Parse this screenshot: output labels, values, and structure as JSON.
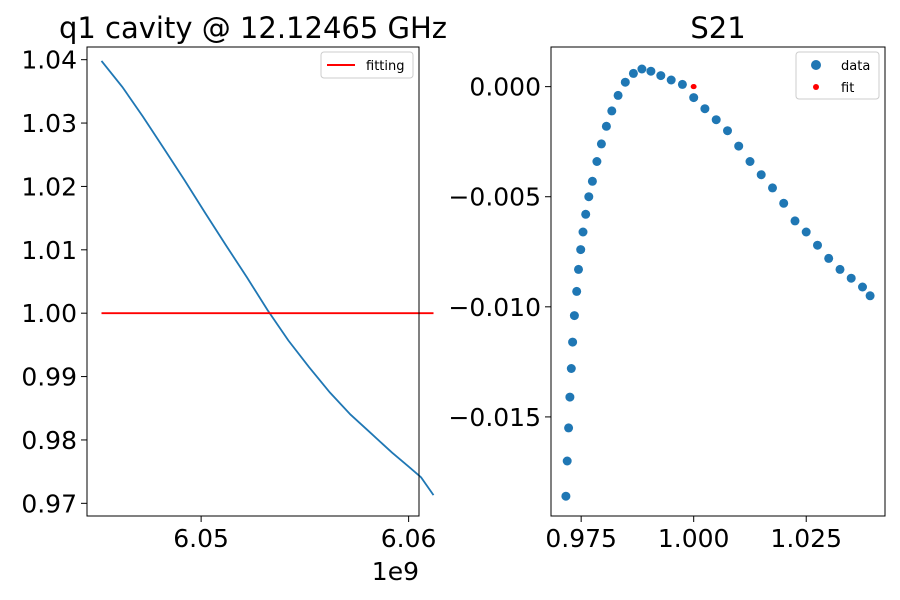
{
  "chart_data": [
    {
      "type": "line",
      "title": "q1 cavity @ 12.12465 GHz",
      "xlabel": "",
      "ylabel": "",
      "x_offset_text": "1e9",
      "xlim": [
        6.0445,
        6.0605
      ],
      "ylim": [
        0.968,
        1.042
      ],
      "xticks": [
        6.05,
        6.06
      ],
      "xtick_labels": [
        "6.05",
        "6.06"
      ],
      "yticks": [
        0.97,
        0.98,
        0.99,
        1.0,
        1.01,
        1.02,
        1.03,
        1.04
      ],
      "ytick_labels": [
        "0.97",
        "0.98",
        "0.99",
        "1.00",
        "1.01",
        "1.02",
        "1.03",
        "1.04"
      ],
      "legend_position": "top-right",
      "grid": false,
      "series": [
        {
          "name": "",
          "color": "#1f77b4",
          "x": [
            6.0452,
            6.0462,
            6.0472,
            6.0482,
            6.0492,
            6.0502,
            6.0512,
            6.0522,
            6.0532,
            6.0542,
            6.0552,
            6.0562,
            6.0572,
            6.0582,
            6.0592,
            6.06
          ],
          "y": [
            1.0398,
            1.0357,
            1.031,
            1.026,
            1.021,
            1.0158,
            1.0107,
            1.0057,
            1.0005,
            0.9957,
            0.9915,
            0.9875,
            0.984,
            0.981,
            0.978,
            0.9758
          ],
          "continuation_x": [
            6.0606,
            6.0612
          ],
          "continuation_y": [
            0.9741,
            0.9713
          ]
        },
        {
          "name": "fitting",
          "color": "#ff0000",
          "x": [
            6.0452,
            6.0612
          ],
          "y": [
            1.0,
            1.0
          ]
        }
      ]
    },
    {
      "type": "scatter",
      "title": "S21",
      "xlabel": "",
      "ylabel": "",
      "xlim": [
        0.9683,
        1.0425
      ],
      "ylim": [
        -0.0195,
        0.0018
      ],
      "xticks": [
        0.975,
        1.0,
        1.025
      ],
      "xtick_labels": [
        "0.975",
        "1.000",
        "1.025"
      ],
      "yticks": [
        0.0,
        -0.005,
        -0.01,
        -0.015
      ],
      "ytick_labels": [
        "0.000",
        "−0.005",
        "−0.010",
        "−0.015"
      ],
      "legend_position": "top-right",
      "grid": false,
      "series": [
        {
          "name": "data",
          "color": "#1f77b4",
          "x": [
            0.9716,
            0.9719,
            0.9722,
            0.9725,
            0.9728,
            0.9731,
            0.9735,
            0.974,
            0.9744,
            0.9749,
            0.9754,
            0.976,
            0.9767,
            0.9775,
            0.9785,
            0.9795,
            0.9806,
            0.9818,
            0.9832,
            0.9848,
            0.9866,
            0.9885,
            0.9905,
            0.9927,
            0.995,
            0.9975,
            1.0,
            1.0025,
            1.005,
            1.0075,
            1.01,
            1.0125,
            1.015,
            1.0175,
            1.02,
            1.0225,
            1.025,
            1.0275,
            1.03,
            1.0325,
            1.035,
            1.0375,
            1.0392
          ],
          "y": [
            -0.0186,
            -0.017,
            -0.0155,
            -0.0141,
            -0.0128,
            -0.0116,
            -0.0104,
            -0.0093,
            -0.0083,
            -0.0074,
            -0.0066,
            -0.0058,
            -0.005,
            -0.0043,
            -0.0034,
            -0.0026,
            -0.0018,
            -0.0011,
            -0.0004,
            0.0002,
            0.0006,
            0.0008,
            0.0007,
            0.0005,
            0.0003,
            0.0001,
            -0.0005,
            -0.001,
            -0.0015,
            -0.002,
            -0.0027,
            -0.0034,
            -0.004,
            -0.0046,
            -0.0053,
            -0.0061,
            -0.0066,
            -0.0072,
            -0.0078,
            -0.0083,
            -0.0087,
            -0.0091,
            -0.0095
          ]
        },
        {
          "name": "fit",
          "color": "#ff0000",
          "x": [
            1.0,
            1.0001,
            0.9999
          ],
          "y": [
            0.0,
            0.0,
            0.0
          ]
        }
      ]
    }
  ]
}
